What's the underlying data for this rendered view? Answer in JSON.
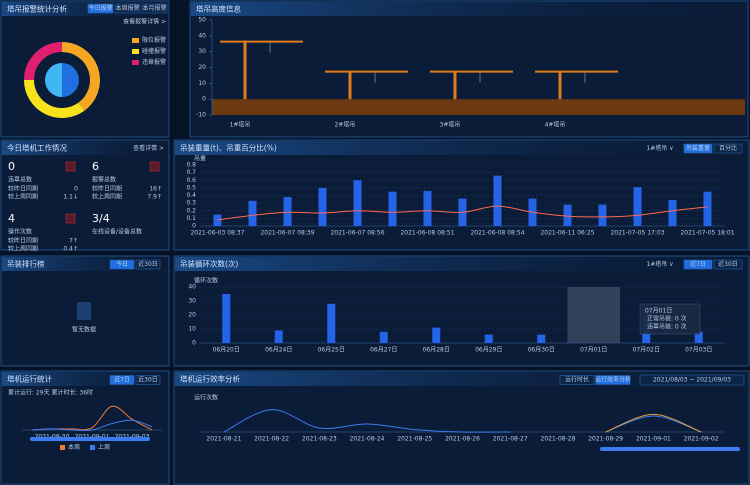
{
  "alarm_panel": {
    "title": "塔吊报警统计分析",
    "tabs": [
      "今日报警",
      "本周报警",
      "本月报警"
    ],
    "active_tab": 0,
    "link": "查看报警详情 >",
    "chart": {
      "type": "donut",
      "categories": [
        "限位报警",
        "碰撞报警",
        "违章报警"
      ],
      "values": [
        40,
        35,
        25
      ],
      "colors": [
        "#f5a623",
        "#f8e21c",
        "#e0206e"
      ]
    }
  },
  "height_panel": {
    "title": "塔吊高度信息",
    "chart": {
      "type": "crane",
      "categories": [
        "1#塔吊",
        "2#塔吊",
        "3#塔吊",
        "4#塔吊"
      ],
      "values": [
        37,
        18,
        18,
        18
      ],
      "color": "#e07b1a",
      "ylim": [
        -10,
        50
      ],
      "yticks": [
        -10,
        0,
        10,
        20,
        30,
        40,
        50
      ]
    }
  },
  "work_panel": {
    "title": "今日塔机工作情况",
    "link": "查看详情 >",
    "items": [
      {
        "value": 0,
        "label": "违章总数",
        "rows": [
          {
            "label": "较昨日同期",
            "value": "0"
          },
          {
            "label": "较上周同期",
            "value": "1.1↓"
          }
        ]
      },
      {
        "value": 6,
        "label": "报警总数",
        "rows": [
          {
            "label": "较昨日同期",
            "value": "16↑"
          },
          {
            "label": "较上周同期",
            "value": "7.9↑"
          }
        ]
      },
      {
        "value": 4,
        "label": "操作次数",
        "rows": [
          {
            "label": "较昨日同期",
            "value": "7↑"
          },
          {
            "label": "较上周同期",
            "value": "0.4↑"
          }
        ]
      },
      {
        "value": "3/4",
        "label": "在线设备/设备总数",
        "rows": []
      }
    ]
  },
  "load_panel": {
    "title": "吊装重量(t)、吊重百分比(%)",
    "dropdown": "1#塔吊 ∨",
    "tabs": [
      "吊装重量",
      "百分比"
    ],
    "active_tab": 0,
    "chart": {
      "type": "bar_line",
      "ylabel": "吊重",
      "ylim": [
        0,
        0.8
      ],
      "yticks": [
        0,
        0.1,
        0.2,
        0.3,
        0.4,
        0.5,
        0.6,
        0.7,
        0.8
      ],
      "categories": [
        "2021-06-03 08:37",
        null,
        "2021-06-07 08:39",
        null,
        "2021-06-07 08:56",
        null,
        "2021-06-08 08:51",
        null,
        "2021-06-08 08:54",
        null,
        "2021-06-11 06:25",
        null,
        "2021-07-05 17:03",
        null,
        "2021-07-05 18:01"
      ],
      "series": [
        {
          "type": "bar",
          "color": "#2563e8",
          "values": [
            0.15,
            0.33,
            0.38,
            0.5,
            0.6,
            0.45,
            0.46,
            0.36,
            0.66,
            0.36,
            0.28,
            0.28,
            0.51,
            0.34,
            0.45
          ]
        },
        {
          "type": "line",
          "color": "#ff6a4d",
          "values": [
            0.08,
            0.14,
            0.18,
            0.17,
            0.2,
            0.18,
            0.2,
            0.18,
            0.26,
            0.18,
            0.13,
            0.12,
            0.14,
            0.2,
            0.25
          ]
        }
      ]
    }
  },
  "rank_panel": {
    "title": "吊装排行榜",
    "tabs": [
      "今日",
      "近30日"
    ],
    "active_tab": 0,
    "empty": "暂无数据"
  },
  "count_panel": {
    "title": "吊装循环次数(次)",
    "dropdown": "1#塔吊 ∨",
    "tabs": [
      "近7日",
      "近30日"
    ],
    "active_tab": 0,
    "tooltip": {
      "title": "07月01日",
      "rows": [
        "正常吊装: 0 次",
        "违章吊装: 0 次"
      ]
    },
    "chart": {
      "type": "bar_line",
      "ylabel": "循环次数",
      "ylim": [
        0,
        40
      ],
      "yticks": [
        0,
        10,
        20,
        30,
        40
      ],
      "highlight": 7,
      "categories": [
        "06月20日",
        "06月24日",
        "06月25日",
        "06月27日",
        "06月28日",
        "06月29日",
        "06月30日",
        "07月01日",
        "07月02日",
        "07月03日"
      ],
      "series": [
        {
          "type": "bar",
          "color": "#2563e8",
          "values": [
            35,
            9,
            28,
            8,
            11,
            6,
            6,
            0,
            26,
            8
          ]
        }
      ]
    }
  },
  "run_panel": {
    "title": "塔机运行统计",
    "tabs": [
      "近7日",
      "近30日"
    ],
    "active_tab": 0,
    "summary": "累计运行: 29天   累计时长: 36时",
    "chart": {
      "type": "bar_line",
      "ylim": [
        0,
        25
      ],
      "categories": [
        null,
        "2021-08-30",
        null,
        "2021-09-01",
        null,
        "2021-09-03",
        null
      ],
      "series": [
        {
          "name": "本周",
          "type": "line",
          "color": "#f07a3a",
          "values": [
            0,
            1,
            1,
            2,
            22,
            10,
            0
          ]
        },
        {
          "name": "上周",
          "type": "line",
          "color": "#3d7bf0",
          "values": [
            0,
            1,
            0,
            0,
            6,
            9,
            3
          ]
        }
      ]
    }
  },
  "eff_panel": {
    "title": "塔机运行效率分析",
    "tabs": [
      "运行时长",
      "运行效率分析"
    ],
    "active_tab": 1,
    "date_range": "2021/08/03 ~ 2021/09/03",
    "chart": {
      "type": "bar_line",
      "ylabel": "运行次数",
      "ylim": [
        0,
        35
      ],
      "categories": [
        "2021-08-21",
        "2021-08-22",
        "2021-08-23",
        "2021-08-24",
        "2021-08-25",
        "2021-08-26",
        "2021-08-27",
        "2021-08-28",
        "2021-08-29",
        "2021-09-01",
        "2021-09-02"
      ],
      "series": [
        {
          "type": "line",
          "color": "#3d7bf0",
          "values": [
            0,
            28,
            5,
            10,
            3,
            0,
            0,
            null,
            0,
            20,
            0
          ]
        },
        {
          "type": "line",
          "color": "#f0a030",
          "values": [
            null,
            null,
            null,
            null,
            null,
            null,
            null,
            null,
            0,
            22,
            0
          ]
        }
      ]
    }
  }
}
